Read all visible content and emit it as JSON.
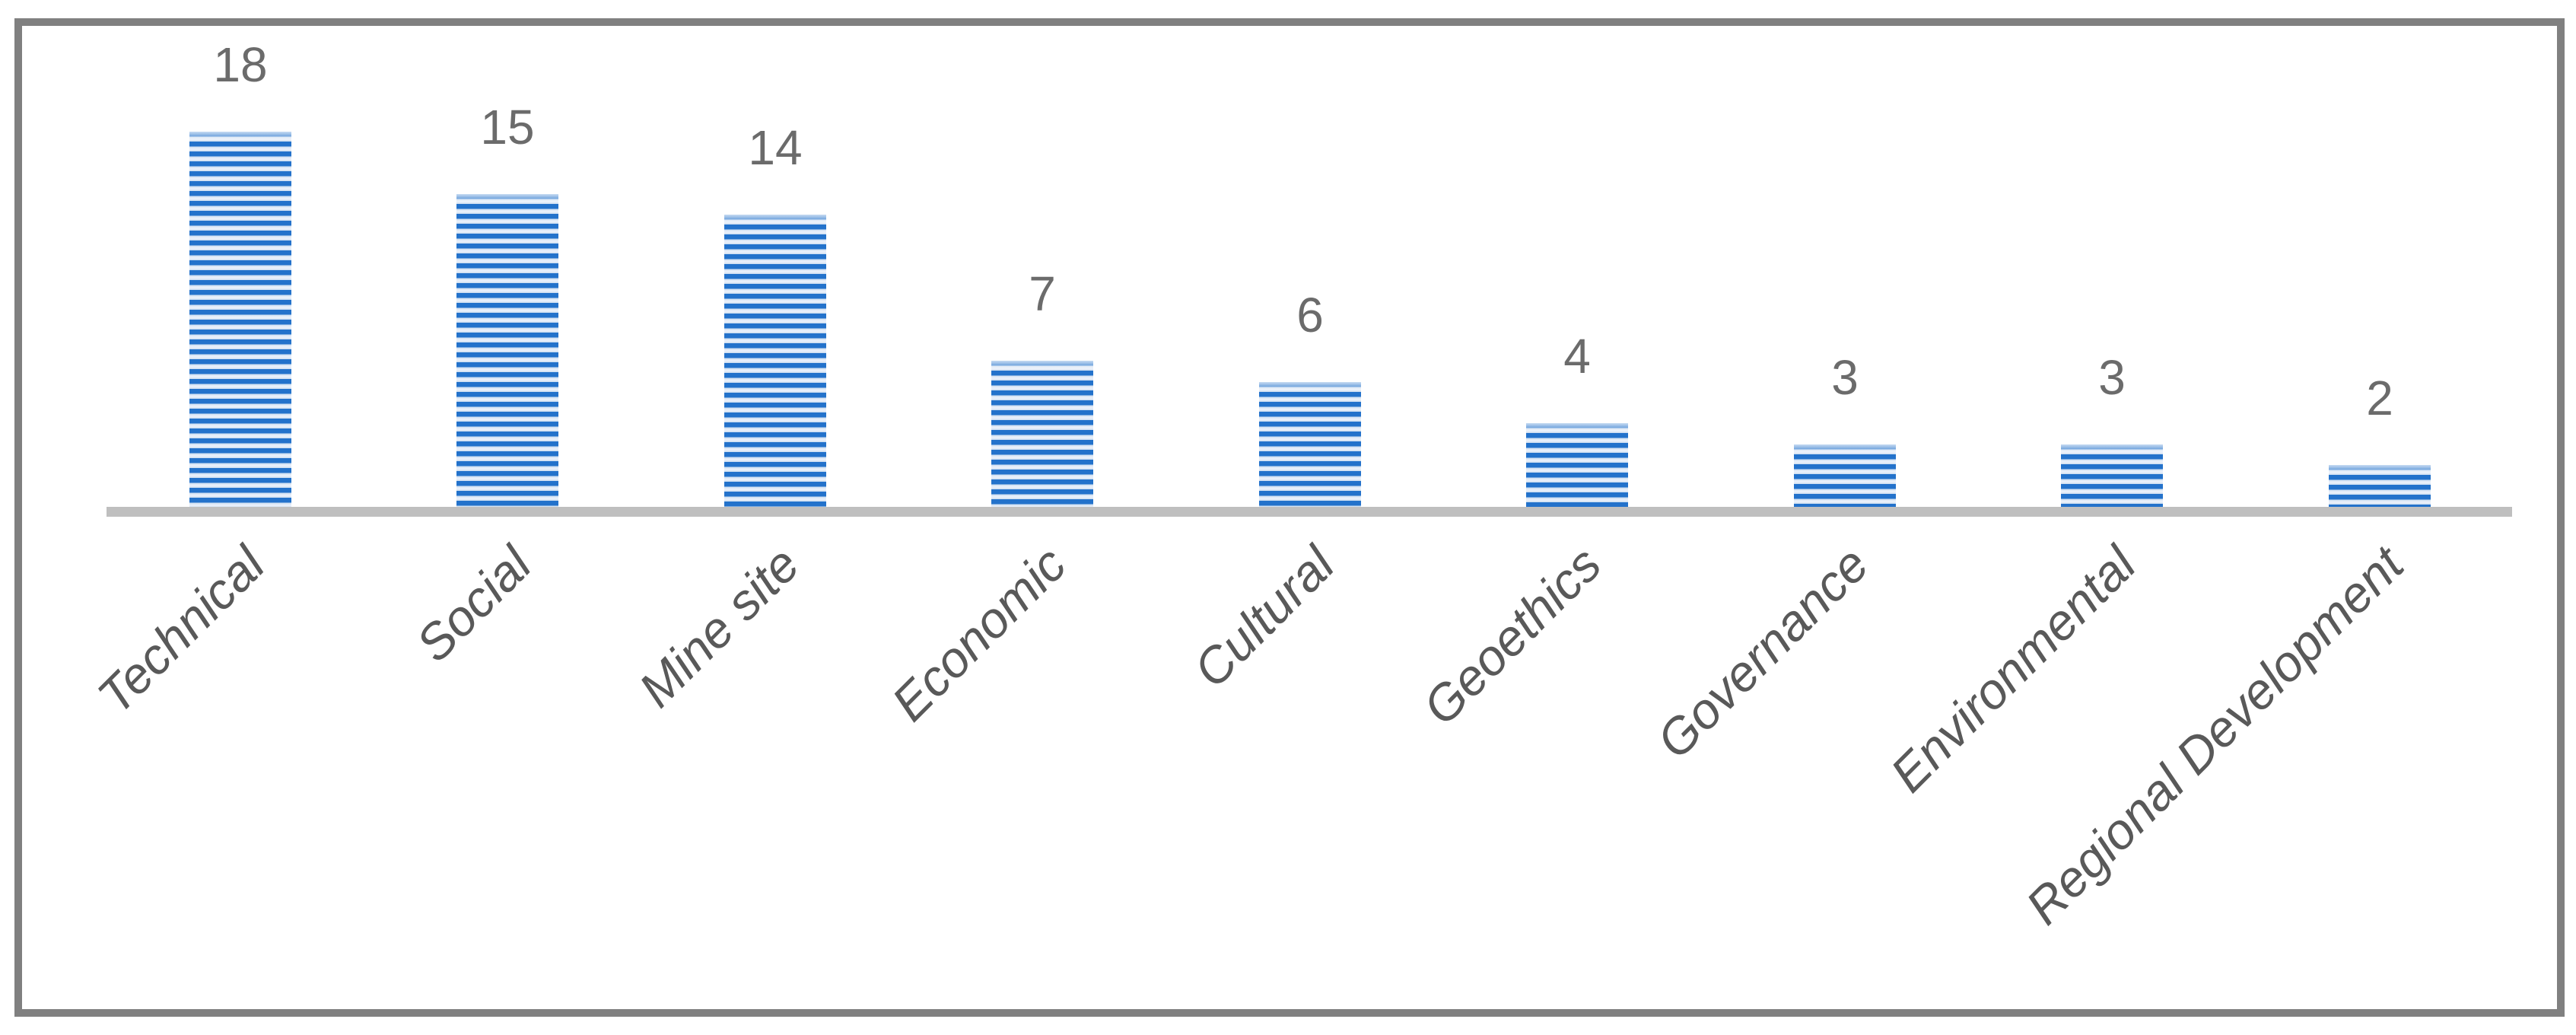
{
  "chart_data": {
    "type": "bar",
    "categories": [
      "Technical",
      "Social",
      "Mine site",
      "Economic",
      "Cultural",
      "Geoethics",
      "Governance",
      "Environmental",
      "Regional Development"
    ],
    "values": [
      18,
      15,
      14,
      7,
      6,
      4,
      3,
      3,
      2
    ],
    "data_labels": [
      "18",
      "15",
      "14",
      "7",
      "6",
      "4",
      "3",
      "3",
      "2"
    ],
    "title": "",
    "xlabel": "",
    "ylabel": "",
    "ylim": [
      0,
      18
    ],
    "grid": false,
    "legend": null,
    "bar_pattern": "horizontal-stripes",
    "category_label_rotation_deg": -45
  },
  "colors": {
    "bar_dark": "#2372CB",
    "bar_light": "#CADCF0",
    "bar_light_mid": "#E9F0FA",
    "axis_line": "#BFBFBF",
    "frame": "#808080",
    "value_label": "#6B6B6B",
    "category_label": "#595959"
  }
}
